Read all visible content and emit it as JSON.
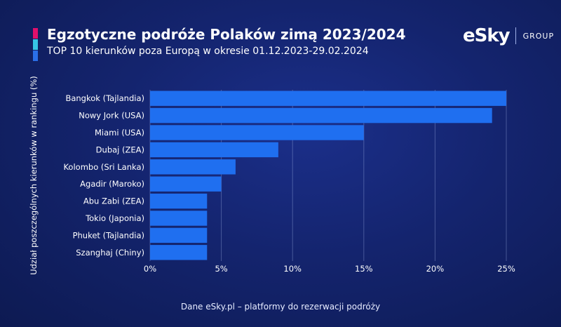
{
  "header": {
    "title": "Egzotyczne podróże Polaków zimą 2023/2024",
    "subtitle": "TOP 10 kierunków poza Europą w okresie 01.12.2023-29.02.2024"
  },
  "logo": {
    "brand": "eSky",
    "group": "GROUP"
  },
  "colors": {
    "bar": "#1f6ff0",
    "accent_pink": "#e0106b",
    "accent_cyan": "#36c5e6",
    "accent_blue": "#2a6fe8"
  },
  "footer": {
    "source": "Dane eSky.pl – platformy do rezerwacji podróży"
  },
  "chart_data": {
    "type": "bar",
    "orientation": "horizontal",
    "categories": [
      "Bangkok (Tajlandia)",
      "Nowy Jork (USA)",
      "Miami (USA)",
      "Dubaj (ZEA)",
      "Kolombo (Sri Lanka)",
      "Agadir (Maroko)",
      "Abu Zabi (ZEA)",
      "Tokio (Japonia)",
      "Phuket (Tajlandia)",
      "Szanghaj (Chiny)"
    ],
    "values": [
      25,
      24,
      15,
      9,
      6,
      5,
      4,
      4,
      4,
      4
    ],
    "xlabel": "",
    "ylabel": "Udział poszczególnych kierunków w rankingu (%)",
    "xlim": [
      0,
      25
    ],
    "xticks": [
      "0%",
      "5%",
      "10%",
      "15%",
      "20%",
      "25%"
    ],
    "grid": true
  }
}
